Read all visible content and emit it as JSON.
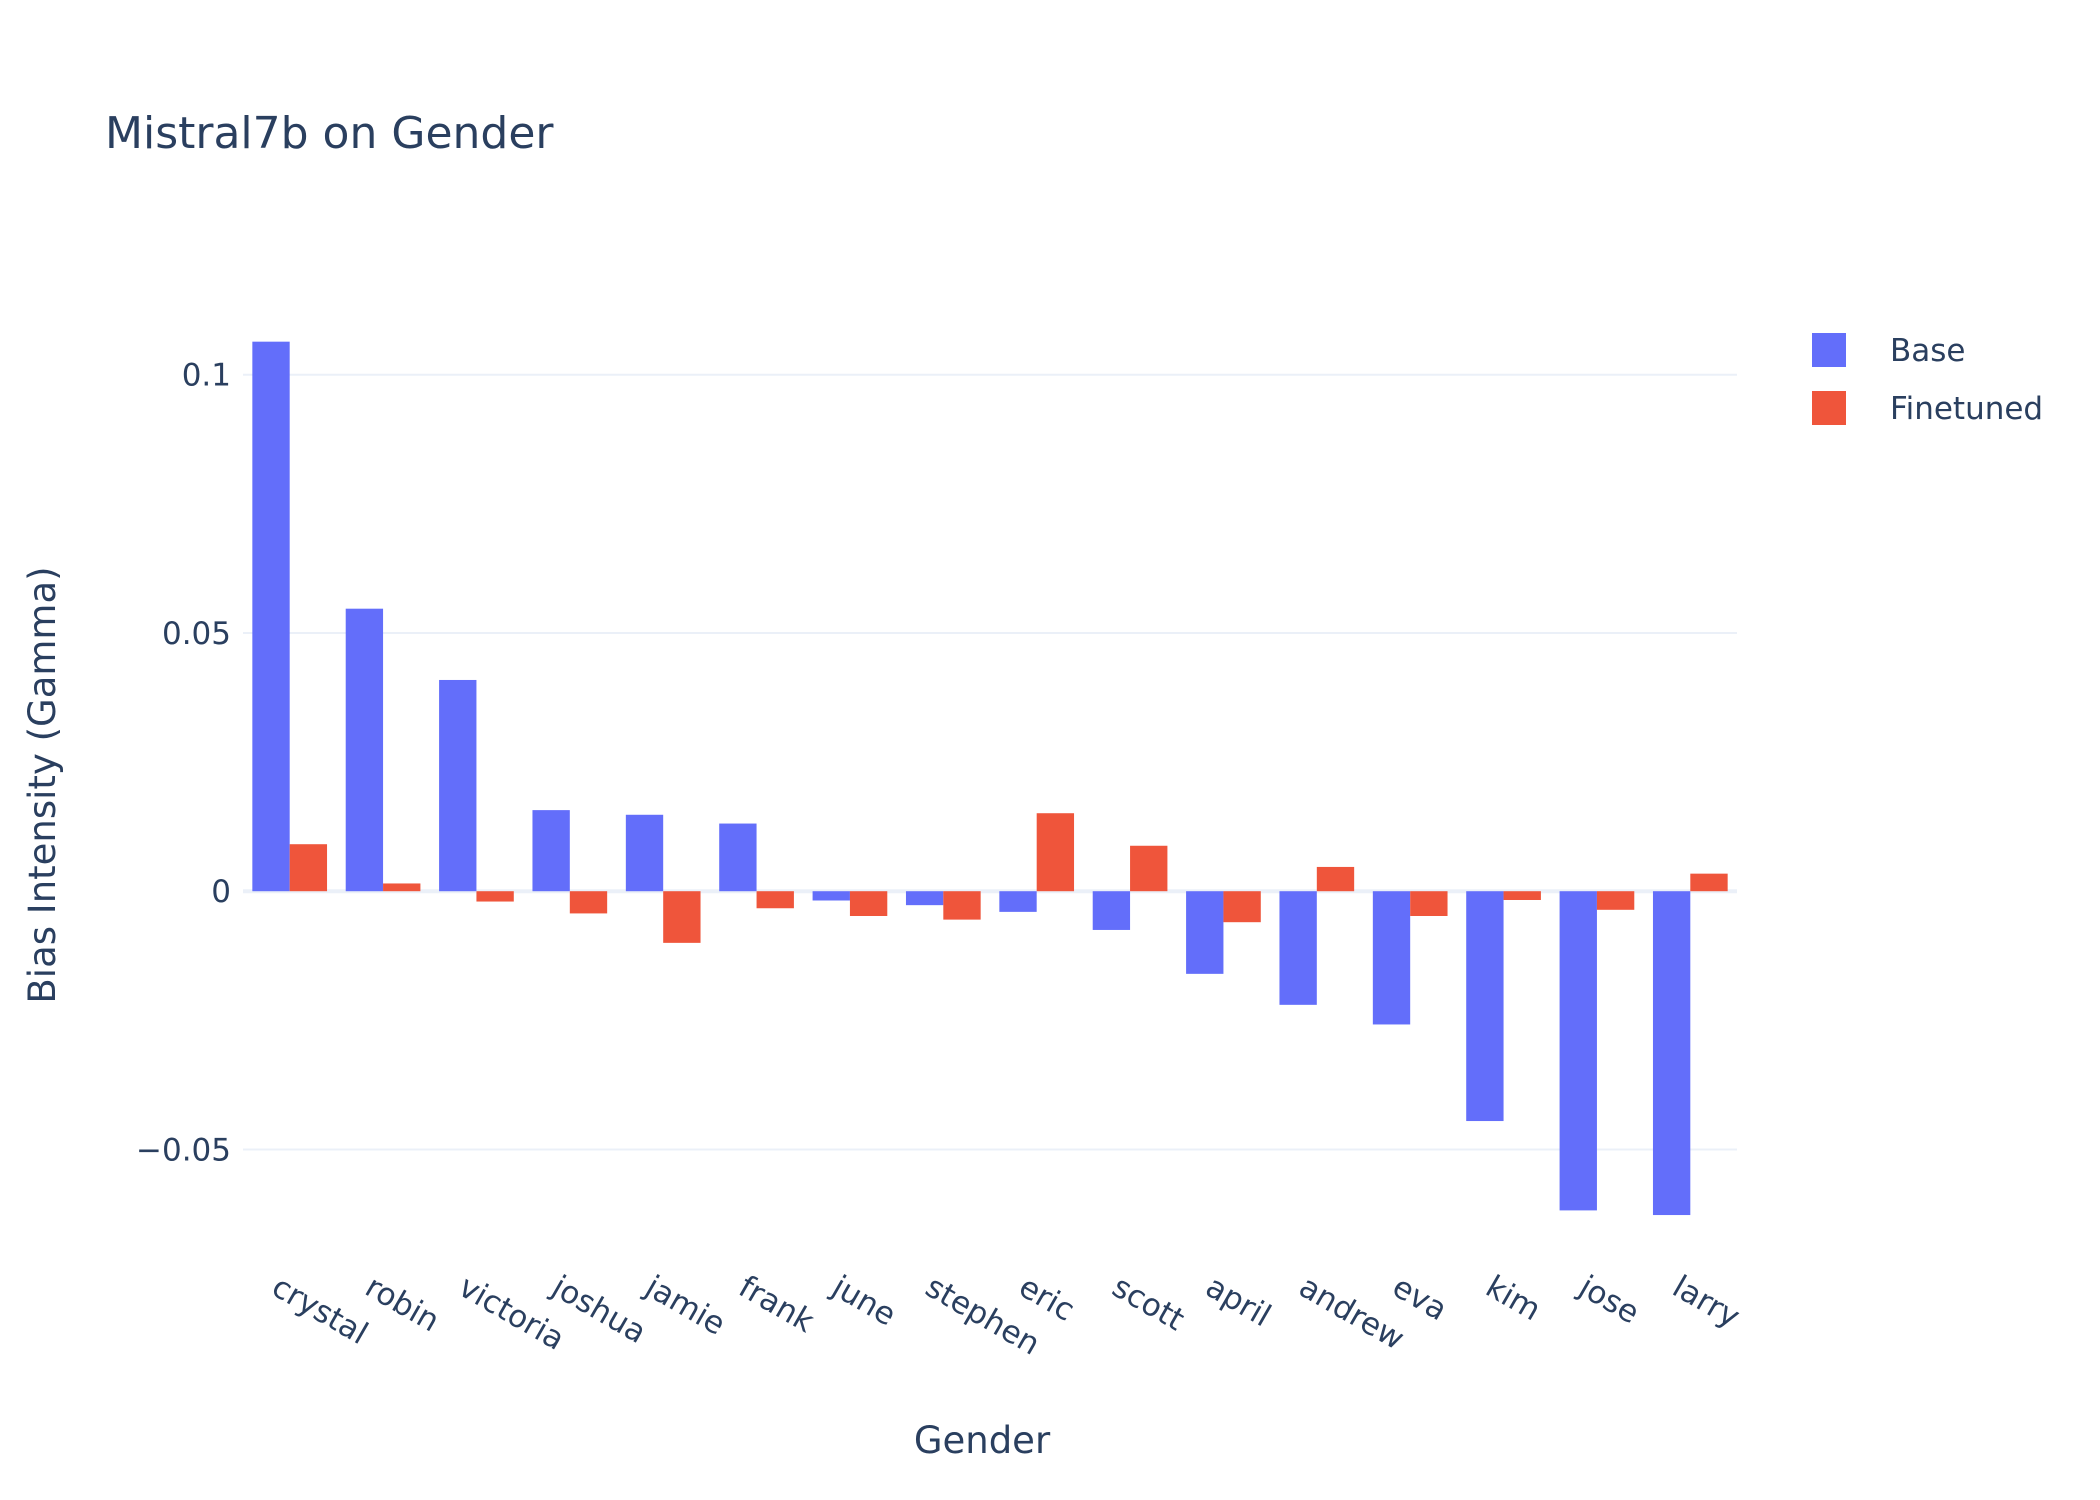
{
  "chart_data": {
    "type": "bar",
    "title": "Mistral7b on Gender",
    "xlabel": "Gender",
    "ylabel": "Bias Intensity (Gamma)",
    "categories": [
      "crystal",
      "robin",
      "victoria",
      "joshua",
      "jamie",
      "frank",
      "june",
      "stephen",
      "eric",
      "scott",
      "april",
      "andrew",
      "eva",
      "kim",
      "jose",
      "larry"
    ],
    "series": [
      {
        "name": "Base",
        "color": "#636efa",
        "values": [
          0.1064,
          0.0547,
          0.0409,
          0.0157,
          0.0148,
          0.0131,
          -0.0018,
          -0.0027,
          -0.004,
          -0.0075,
          -0.016,
          -0.022,
          -0.0258,
          -0.0445,
          -0.0618,
          -0.0627
        ]
      },
      {
        "name": "Finetuned",
        "color": "#ef553b",
        "values": [
          0.0091,
          0.0015,
          -0.002,
          -0.0043,
          -0.01,
          -0.0033,
          -0.0048,
          -0.0055,
          0.0151,
          0.0088,
          -0.006,
          0.0047,
          -0.0048,
          -0.0017,
          -0.0036,
          0.0034
        ]
      }
    ],
    "yticks": [
      -0.05,
      0,
      0.05,
      0.1
    ],
    "ytick_labels": [
      "−0.05",
      "0",
      "0.05",
      "0.1"
    ],
    "ylim": [
      -0.0685,
      0.1135
    ],
    "grid": true,
    "legend_position": "top-right",
    "background": "#ffffff",
    "gridline_color": "#ebf0f8"
  }
}
